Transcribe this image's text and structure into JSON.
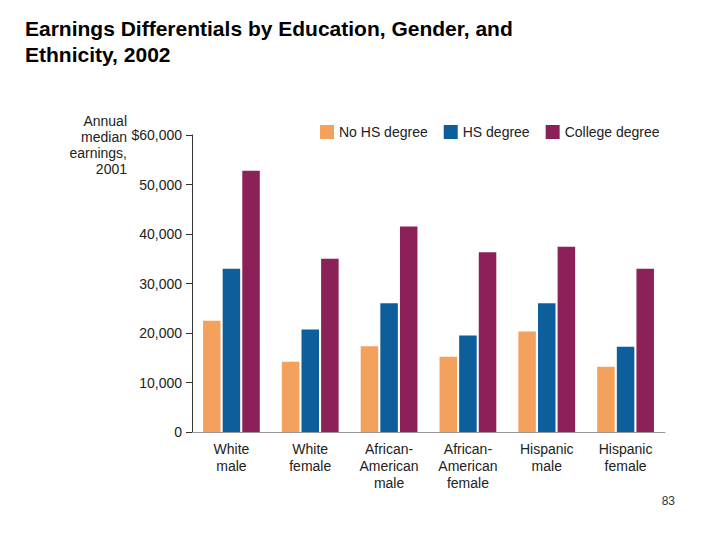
{
  "chart_data": {
    "type": "bar",
    "title": "Earnings Differentials by Education, Gender, and Ethnicity, 2002",
    "y_label": "Annual median earnings, 2001",
    "annotations": [
      "83"
    ],
    "categories": [
      "White male",
      "White female",
      "African-American male",
      "African-American female",
      "Hispanic male",
      "Hispanic female"
    ],
    "series": [
      {
        "name": "No HS degree",
        "color": "#f4a15d",
        "values": [
          22500,
          14200,
          17300,
          15200,
          20300,
          13200
        ]
      },
      {
        "name": "HS degree",
        "color": "#0d5f9c",
        "values": [
          33000,
          20700,
          26000,
          19500,
          26000,
          17200
        ]
      },
      {
        "name": "College degree",
        "color": "#8c2159",
        "values": [
          52800,
          35000,
          41500,
          36300,
          37400,
          33000
        ]
      }
    ],
    "ylim": [
      0,
      60000
    ],
    "yticks": [
      0,
      {
        "value": 10000,
        "label": "10,000"
      },
      {
        "value": 20000,
        "label": "20,000"
      },
      {
        "value": 30000,
        "label": "30,000"
      },
      {
        "value": 40000,
        "label": "40,000"
      },
      {
        "value": 50000,
        "label": "50,000"
      },
      {
        "value": 60000,
        "label": "$60,000"
      }
    ],
    "grid": false,
    "legend": "top"
  }
}
